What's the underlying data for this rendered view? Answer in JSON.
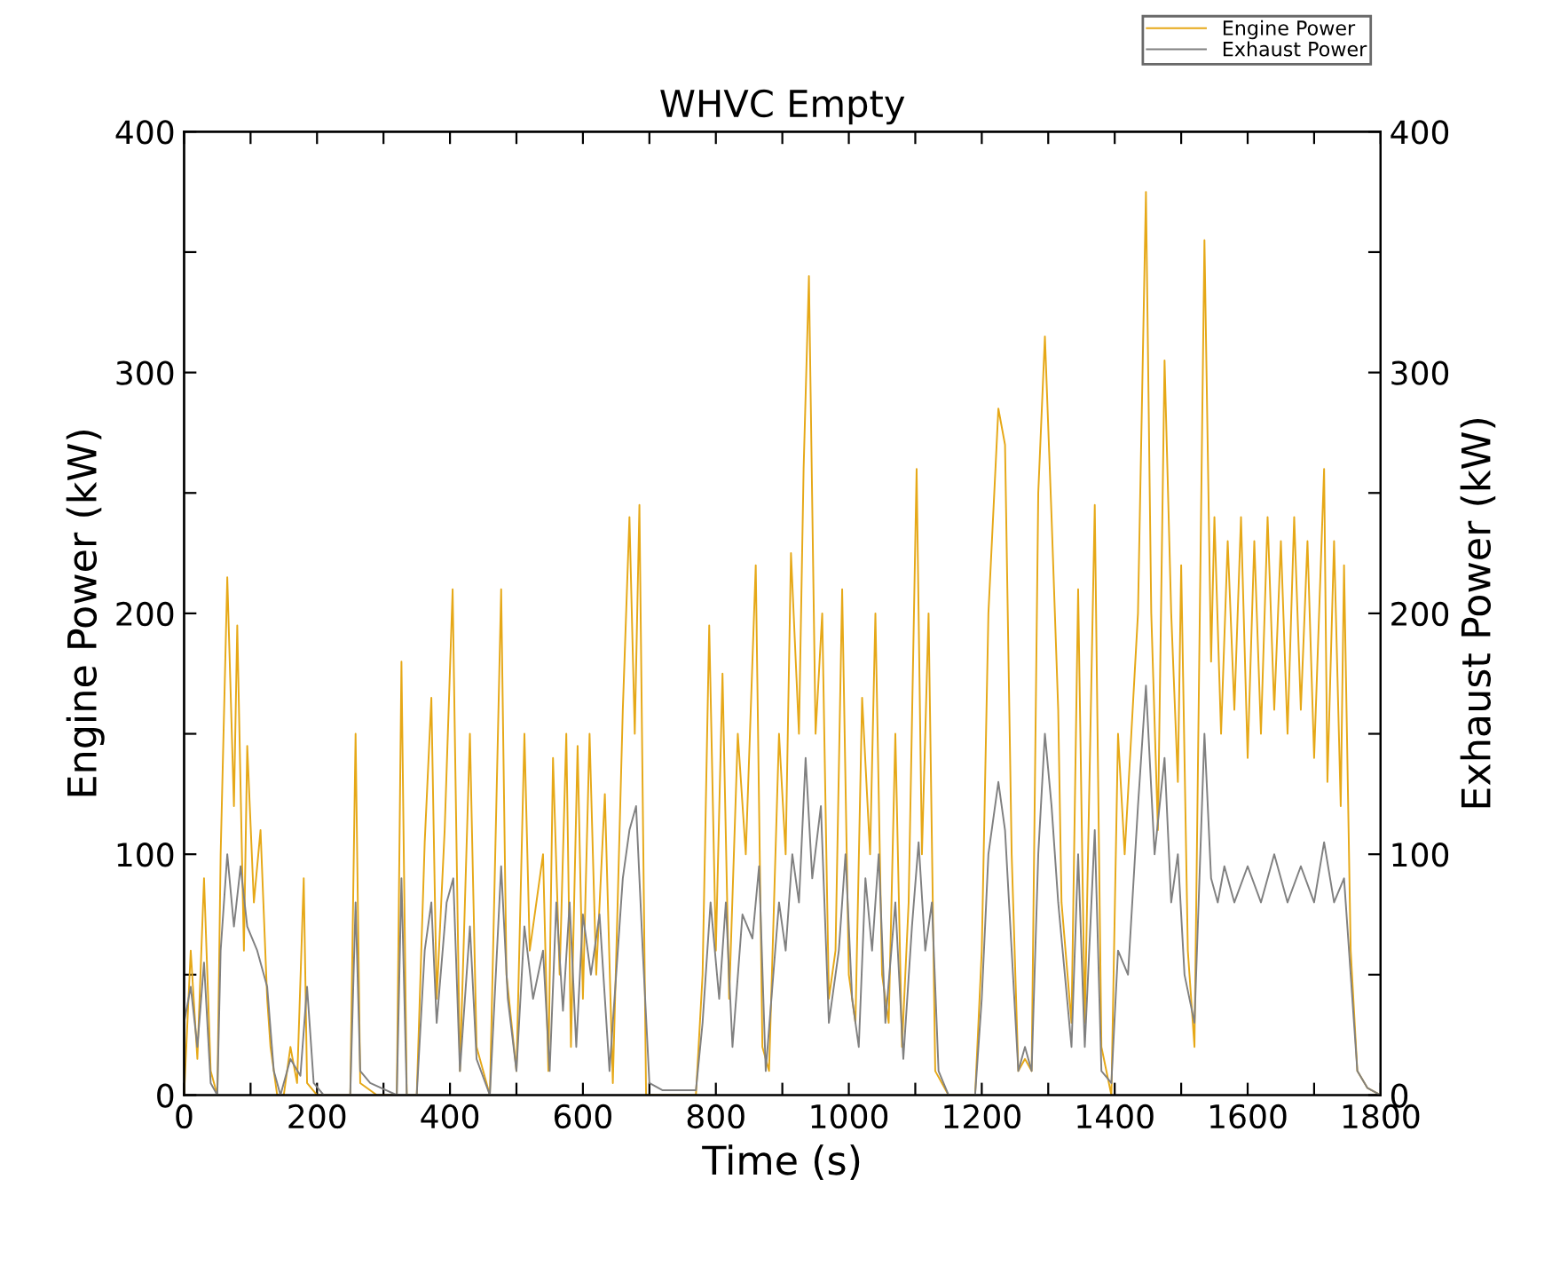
{
  "chart_data": {
    "type": "line",
    "title": "WHVC Empty",
    "xlabel": "Time (s)",
    "ylabel": "Engine Power (kW)",
    "y2label": "Exhaust Power (kW)",
    "legend": "top right",
    "grid": false,
    "line_style": "solid",
    "marker": "none",
    "xlim": [
      0,
      1800
    ],
    "xticks": [
      0,
      {
        "value": 100,
        "label": null
      },
      200,
      {
        "value": 300,
        "label": null
      },
      400,
      {
        "value": 500,
        "label": null
      },
      600,
      {
        "value": 700,
        "label": null
      },
      800,
      {
        "value": 900,
        "label": null
      },
      1000,
      {
        "value": 1100,
        "label": null
      },
      1200,
      {
        "value": 1300,
        "label": null
      },
      1400,
      {
        "value": 1500,
        "label": null
      },
      1600,
      {
        "value": 1700,
        "label": null
      },
      1800
    ],
    "ylim": [
      0,
      400
    ],
    "yticks": [
      0,
      {
        "value": 50,
        "label": null
      },
      100,
      {
        "value": 150,
        "label": null
      },
      200,
      {
        "value": 250,
        "label": null
      },
      300,
      {
        "value": 350,
        "label": null
      },
      400
    ],
    "y2lim": [
      0,
      400
    ],
    "y2ticks": [
      0,
      {
        "value": 50,
        "label": null
      },
      100,
      {
        "value": 150,
        "label": null
      },
      200,
      {
        "value": 250,
        "label": null
      },
      300,
      {
        "value": 350,
        "label": null
      },
      400
    ],
    "series": [
      {
        "name": "Engine Power",
        "color": "#e6a817",
        "x": [
          0,
          10,
          20,
          30,
          40,
          50,
          55,
          65,
          75,
          80,
          90,
          95,
          105,
          115,
          125,
          130,
          140,
          150,
          160,
          170,
          180,
          185,
          200,
          250,
          258,
          265,
          290,
          320,
          327,
          335,
          350,
          362,
          372,
          380,
          392,
          404,
          415,
          430,
          440,
          460,
          477,
          485,
          500,
          512,
          520,
          540,
          548,
          555,
          565,
          575,
          582,
          592,
          600,
          610,
          620,
          633,
          645,
          660,
          670,
          678,
          685,
          695,
          720,
          770,
          780,
          790,
          800,
          810,
          820,
          833,
          845,
          860,
          870,
          880,
          895,
          905,
          913,
          925,
          932,
          940,
          950,
          960,
          970,
          980,
          990,
          1000,
          1010,
          1020,
          1032,
          1040,
          1050,
          1060,
          1070,
          1080,
          1090,
          1102,
          1110,
          1120,
          1130,
          1150,
          1190,
          1200,
          1210,
          1225,
          1235,
          1245,
          1255,
          1265,
          1275,
          1285,
          1295,
          1305,
          1315,
          1320,
          1335,
          1345,
          1355,
          1370,
          1380,
          1395,
          1405,
          1415,
          1425,
          1435,
          1447,
          1455,
          1465,
          1475,
          1485,
          1495,
          1500,
          1510,
          1520,
          1535,
          1545,
          1550,
          1560,
          1570,
          1580,
          1590,
          1600,
          1610,
          1620,
          1630,
          1640,
          1650,
          1660,
          1670,
          1680,
          1690,
          1700,
          1710,
          1715,
          1720,
          1730,
          1740,
          1745,
          1755,
          1765,
          1780,
          1800
        ],
        "values": [
          0,
          60,
          15,
          90,
          10,
          0,
          100,
          215,
          120,
          195,
          60,
          145,
          80,
          110,
          40,
          20,
          0,
          0,
          20,
          5,
          90,
          5,
          0,
          0,
          150,
          5,
          0,
          0,
          180,
          0,
          0,
          105,
          165,
          40,
          110,
          210,
          10,
          150,
          20,
          0,
          210,
          50,
          10,
          150,
          60,
          100,
          10,
          140,
          50,
          150,
          20,
          145,
          40,
          150,
          50,
          125,
          5,
          160,
          240,
          150,
          245,
          0,
          0,
          0,
          50,
          195,
          60,
          175,
          40,
          150,
          100,
          220,
          20,
          10,
          150,
          100,
          225,
          150,
          260,
          340,
          150,
          200,
          40,
          60,
          210,
          50,
          30,
          165,
          100,
          200,
          50,
          30,
          150,
          20,
          80,
          260,
          100,
          200,
          10,
          0,
          0,
          60,
          200,
          285,
          270,
          100,
          10,
          15,
          10,
          250,
          315,
          240,
          160,
          80,
          30,
          210,
          30,
          245,
          20,
          0,
          150,
          100,
          150,
          200,
          375,
          200,
          110,
          305,
          200,
          130,
          220,
          60,
          20,
          355,
          180,
          240,
          150,
          230,
          160,
          240,
          140,
          230,
          150,
          240,
          160,
          230,
          150,
          240,
          160,
          230,
          140,
          220,
          260,
          130,
          230,
          120,
          220,
          60,
          10,
          3,
          0
        ]
      },
      {
        "name": "Exhaust Power",
        "color": "#808080",
        "axis": "y2",
        "x": [
          0,
          10,
          20,
          30,
          40,
          50,
          55,
          65,
          75,
          85,
          95,
          110,
          125,
          135,
          145,
          160,
          175,
          185,
          195,
          210,
          250,
          258,
          265,
          280,
          320,
          327,
          335,
          350,
          362,
          372,
          380,
          395,
          405,
          415,
          430,
          440,
          460,
          477,
          487,
          500,
          512,
          525,
          540,
          550,
          560,
          570,
          580,
          590,
          600,
          612,
          625,
          640,
          660,
          670,
          680,
          690,
          700,
          720,
          770,
          780,
          792,
          805,
          815,
          825,
          840,
          855,
          865,
          875,
          895,
          905,
          915,
          925,
          935,
          945,
          958,
          970,
          985,
          995,
          1005,
          1015,
          1025,
          1035,
          1045,
          1055,
          1070,
          1082,
          1095,
          1105,
          1115,
          1125,
          1135,
          1150,
          1190,
          1200,
          1210,
          1225,
          1235,
          1245,
          1255,
          1265,
          1275,
          1285,
          1295,
          1305,
          1315,
          1325,
          1335,
          1345,
          1355,
          1370,
          1380,
          1395,
          1405,
          1420,
          1435,
          1447,
          1460,
          1475,
          1485,
          1495,
          1505,
          1520,
          1535,
          1545,
          1555,
          1565,
          1580,
          1600,
          1620,
          1640,
          1660,
          1680,
          1700,
          1715,
          1730,
          1745,
          1755,
          1765,
          1780,
          1800
        ],
        "values": [
          30,
          45,
          20,
          55,
          5,
          0,
          60,
          100,
          70,
          95,
          70,
          60,
          45,
          10,
          0,
          15,
          8,
          45,
          5,
          0,
          0,
          80,
          10,
          5,
          0,
          90,
          0,
          0,
          60,
          80,
          30,
          80,
          90,
          10,
          70,
          15,
          0,
          95,
          40,
          10,
          70,
          40,
          60,
          10,
          80,
          35,
          80,
          20,
          75,
          50,
          75,
          10,
          90,
          110,
          120,
          60,
          5,
          2,
          2,
          30,
          80,
          40,
          80,
          20,
          75,
          65,
          95,
          10,
          80,
          60,
          100,
          80,
          140,
          90,
          120,
          30,
          60,
          100,
          40,
          20,
          90,
          60,
          100,
          30,
          80,
          15,
          70,
          105,
          60,
          80,
          10,
          0,
          0,
          40,
          100,
          130,
          110,
          60,
          10,
          20,
          10,
          100,
          150,
          120,
          80,
          50,
          20,
          100,
          20,
          110,
          10,
          5,
          60,
          50,
          120,
          170,
          100,
          140,
          80,
          100,
          50,
          30,
          150,
          90,
          80,
          95,
          80,
          95,
          80,
          100,
          80,
          95,
          80,
          105,
          80,
          90,
          50,
          10,
          3,
          0
        ]
      }
    ]
  }
}
